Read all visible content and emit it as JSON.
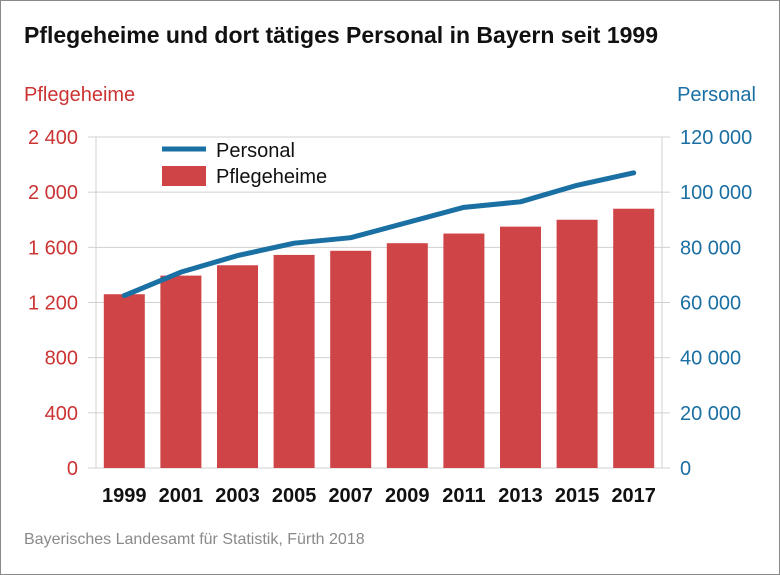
{
  "title": "Pflegeheime und dort tätiges Personal in Bayern seit 1999",
  "source": "Bayerisches Landesamt für Statistik, Fürth 2018",
  "colors": {
    "bars": "#cf4446",
    "line": "#1a6fa3",
    "left_axis": "#cc3333",
    "right_axis": "#1a6fa3",
    "grid": "#d0d0d0"
  },
  "chart_data": {
    "type": "bar+line",
    "title": "Pflegeheime und dort tätiges Personal in Bayern seit 1999",
    "categories": [
      "1999",
      "2001",
      "2003",
      "2005",
      "2007",
      "2009",
      "2011",
      "2013",
      "2015",
      "2017"
    ],
    "series": [
      {
        "name": "Pflegeheime",
        "type": "bar",
        "axis": "left",
        "values": [
          1260,
          1395,
          1470,
          1545,
          1575,
          1630,
          1700,
          1750,
          1800,
          1880
        ]
      },
      {
        "name": "Personal",
        "type": "line",
        "axis": "right",
        "values": [
          62500,
          71000,
          77000,
          81500,
          83500,
          89000,
          94500,
          96500,
          102500,
          107000
        ]
      }
    ],
    "left_axis": {
      "label": "Pflegeheime",
      "min": 0,
      "max": 2400,
      "ticks": [
        0,
        400,
        800,
        1200,
        1600,
        2000,
        2400
      ],
      "tick_labels": [
        "0",
        "400",
        "800",
        "1 200",
        "1 600",
        "2 000",
        "2 400"
      ]
    },
    "right_axis": {
      "label": "Personal",
      "min": 0,
      "max": 120000,
      "ticks": [
        0,
        20000,
        40000,
        60000,
        80000,
        100000,
        120000
      ],
      "tick_labels": [
        "0",
        "20 000",
        "40 000",
        "60 000",
        "80 000",
        "100 000",
        "120 000"
      ]
    },
    "legend": {
      "position": "top-left",
      "entries": [
        "Personal",
        "Pflegeheime"
      ]
    },
    "grid": true
  }
}
